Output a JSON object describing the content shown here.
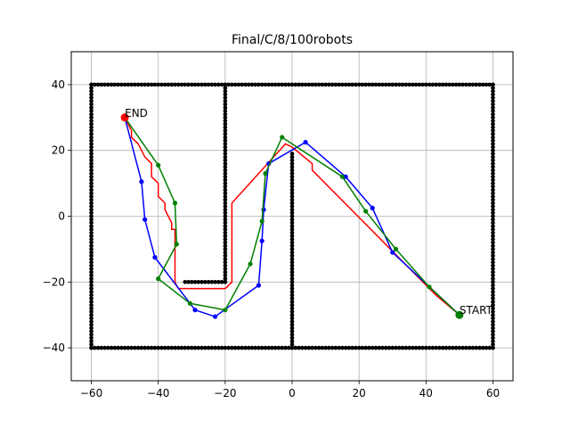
{
  "chart_data": {
    "type": "line",
    "title": "Final/C/8/100robots",
    "xlabel": "",
    "ylabel": "",
    "xlim": [
      -66,
      66
    ],
    "ylim": [
      -50,
      50
    ],
    "xticks": [
      -60,
      -40,
      -20,
      0,
      20,
      40,
      60
    ],
    "yticks": [
      -40,
      -20,
      0,
      20,
      40
    ],
    "xtick_labels": [
      "−60",
      "−40",
      "−20",
      "0",
      "20",
      "40",
      "60"
    ],
    "ytick_labels": [
      "−40",
      "−20",
      "0",
      "20",
      "40"
    ],
    "grid": true,
    "walls": {
      "color": "#000000",
      "segments": [
        [
          [
            -60,
            40
          ],
          [
            60,
            40
          ]
        ],
        [
          [
            -60,
            -40
          ],
          [
            60,
            -40
          ]
        ],
        [
          [
            -60,
            -40
          ],
          [
            -60,
            40
          ]
        ],
        [
          [
            60,
            -40
          ],
          [
            60,
            40
          ]
        ],
        [
          [
            -20,
            -20
          ],
          [
            -20,
            40
          ]
        ],
        [
          [
            -32,
            -20
          ],
          [
            -20,
            -20
          ]
        ],
        [
          [
            0,
            -40
          ],
          [
            0,
            19
          ]
        ]
      ]
    },
    "series": [
      {
        "color": "#ff0000",
        "marker": false,
        "points": [
          [
            50,
            -30
          ],
          [
            43,
            -24
          ],
          [
            6,
            14
          ],
          [
            6,
            16
          ],
          [
            0,
            21
          ],
          [
            -2,
            22
          ],
          [
            -18,
            4
          ],
          [
            -18,
            -20
          ],
          [
            -20,
            -22
          ],
          [
            -34,
            -22
          ],
          [
            -35,
            -20
          ],
          [
            -35,
            -4
          ],
          [
            -36,
            -4
          ],
          [
            -36,
            -2
          ],
          [
            -37,
            0
          ],
          [
            -38,
            2
          ],
          [
            -38,
            4
          ],
          [
            -40,
            6
          ],
          [
            -40,
            10
          ],
          [
            -42,
            12
          ],
          [
            -42,
            16
          ],
          [
            -44,
            18
          ],
          [
            -45,
            20
          ],
          [
            -46,
            22
          ],
          [
            -48,
            24
          ],
          [
            -48,
            26
          ],
          [
            -50,
            30
          ]
        ]
      },
      {
        "color": "#0000ff",
        "marker": true,
        "points": [
          [
            50,
            -30
          ],
          [
            30,
            -11
          ],
          [
            24,
            2.5
          ],
          [
            16,
            12
          ],
          [
            4,
            22.5
          ],
          [
            -7,
            16
          ],
          [
            -8.5,
            2
          ],
          [
            -9,
            -7.5
          ],
          [
            -10,
            -21
          ],
          [
            -23,
            -30.5
          ],
          [
            -29,
            -28.5
          ],
          [
            -41,
            -12.5
          ],
          [
            -44,
            -1
          ],
          [
            -45,
            10.5
          ],
          [
            -50,
            30
          ]
        ]
      },
      {
        "color": "#008000",
        "marker": true,
        "points": [
          [
            50,
            -30
          ],
          [
            41,
            -21.5
          ],
          [
            31,
            -10
          ],
          [
            22,
            1.5
          ],
          [
            15,
            12
          ],
          [
            -3,
            24
          ],
          [
            -8,
            13
          ],
          [
            -9,
            -1.5
          ],
          [
            -12.5,
            -14.5
          ],
          [
            -20,
            -28.5
          ],
          [
            -30.5,
            -26.5
          ],
          [
            -40,
            -19
          ],
          [
            -34.5,
            -8.5
          ],
          [
            -35,
            4
          ],
          [
            -40,
            15.5
          ],
          [
            -50,
            30
          ]
        ]
      }
    ],
    "start": {
      "x": 50,
      "y": -30,
      "color": "#008000",
      "label": "START"
    },
    "end": {
      "x": -50,
      "y": 30,
      "color": "#ff0000",
      "label": "END"
    }
  }
}
